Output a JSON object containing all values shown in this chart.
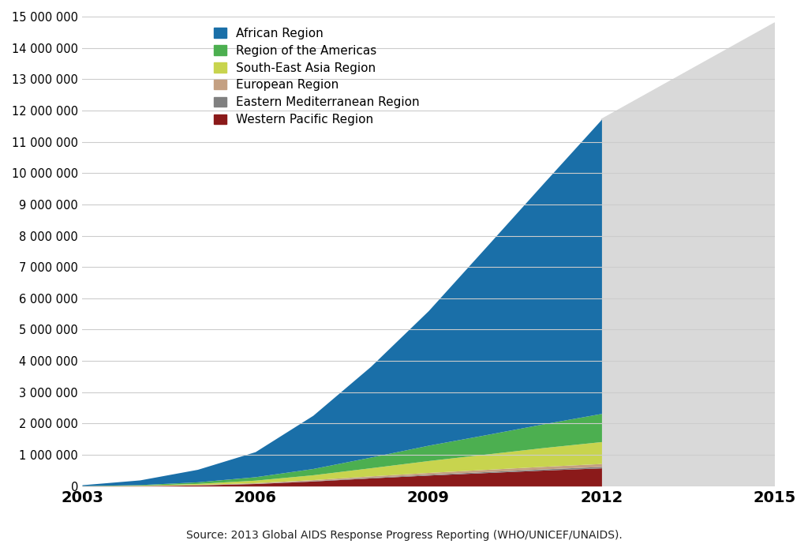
{
  "years": [
    2003,
    2004,
    2005,
    2006,
    2007,
    2008,
    2009,
    2010,
    2011,
    2012
  ],
  "african_region": [
    30000,
    150000,
    400000,
    800000,
    1700000,
    2900000,
    4300000,
    6000000,
    7700000,
    9400000
  ],
  "americas_region": [
    5000,
    18000,
    50000,
    110000,
    200000,
    340000,
    490000,
    620000,
    760000,
    900000
  ],
  "south_east_asia_region": [
    3000,
    12000,
    35000,
    80000,
    155000,
    260000,
    380000,
    490000,
    600000,
    700000
  ],
  "european_region": [
    1000,
    4000,
    10000,
    20000,
    32000,
    45000,
    58000,
    70000,
    82000,
    95000
  ],
  "eastern_mediterranean_region": [
    500,
    1500,
    4000,
    8000,
    13000,
    19000,
    26000,
    32000,
    38000,
    45000
  ],
  "western_pacific_region": [
    2000,
    10000,
    35000,
    80000,
    160000,
    260000,
    350000,
    430000,
    510000,
    580000
  ],
  "colors": {
    "african_region": "#1a6fa8",
    "americas_region": "#4caf50",
    "south_east_asia_region": "#c8d44e",
    "european_region": "#c4a082",
    "eastern_mediterranean_region": "#808080",
    "western_pacific_region": "#8b1a1a"
  },
  "xlim": [
    2003,
    2015
  ],
  "ylim": [
    0,
    15000000
  ],
  "yticks": [
    0,
    1000000,
    2000000,
    3000000,
    4000000,
    5000000,
    6000000,
    7000000,
    8000000,
    9000000,
    10000000,
    11000000,
    12000000,
    13000000,
    14000000,
    15000000
  ],
  "xticks": [
    2003,
    2006,
    2009,
    2012,
    2015
  ],
  "source_text": "Source: 2013 Global AIDS Response Progress Reporting (WHO/UNICEF/UNAIDS).",
  "background_color": "#ffffff",
  "forecast_color": "#d9d9d9",
  "forecast_start": 2012,
  "forecast_end": 2015,
  "forecast_peak": 14800000,
  "legend_entries": [
    [
      "African Region",
      "#1a6fa8"
    ],
    [
      "Region of the Americas",
      "#4caf50"
    ],
    [
      "South-East Asia Region",
      "#c8d44e"
    ],
    [
      "European Region",
      "#c4a082"
    ],
    [
      "Eastern Mediterranean Region",
      "#808080"
    ],
    [
      "Western Pacific Region",
      "#8b1a1a"
    ]
  ]
}
